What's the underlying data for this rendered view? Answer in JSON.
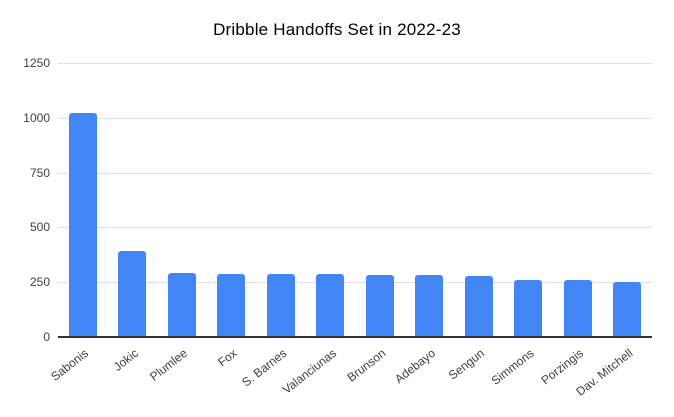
{
  "title": "Dribble Handoffs Set in 2022-23",
  "colors": {
    "bar": "#4285f4",
    "gridline": "#e0e0e0",
    "axis_baseline": "#333333",
    "tick_label": "#3c4043",
    "title": "#000000",
    "background": "#ffffff"
  },
  "chart_data": {
    "type": "bar",
    "title": "Dribble Handoffs Set in 2022-23",
    "categories": [
      "Sabonis",
      "Jokic",
      "Plumlee",
      "Fox",
      "S. Barnes",
      "Valanciunas",
      "Brunson",
      "Adebayo",
      "Sengun",
      "Simmons",
      "Porzingis",
      "Dav. Mitchell"
    ],
    "values": [
      1020,
      392,
      293,
      289,
      288,
      288,
      284,
      284,
      277,
      262,
      259,
      250
    ],
    "xlabel": "",
    "ylabel": "",
    "ylim": [
      0,
      1250
    ],
    "yticks": [
      0,
      250,
      500,
      750,
      1000,
      1250
    ],
    "grid": true,
    "legend": false,
    "x_label_rotation_deg": -38,
    "bar_color": "#4285f4"
  }
}
